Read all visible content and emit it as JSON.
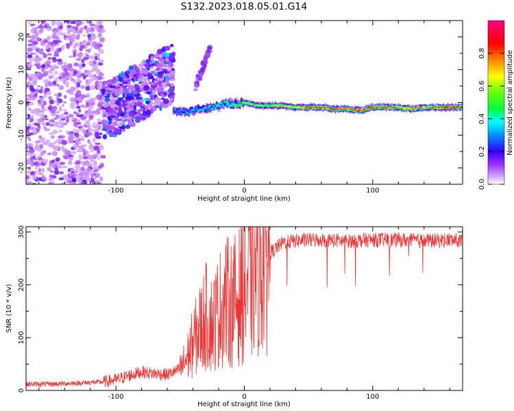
{
  "title": "S132.2023.018.05.01.G14",
  "chart_data": [
    {
      "type": "heatmap",
      "title": "S132.2023.018.05.01.G14",
      "xlabel": "Height of straight line (km)",
      "ylabel": "Frequency (Hz)",
      "xlim": [
        -170,
        170
      ],
      "ylim": [
        -25,
        25
      ],
      "x_ticks": [
        -100,
        0,
        100
      ],
      "x_tick_labels": [
        "-100",
        "0",
        "100"
      ],
      "y_ticks": [
        -20,
        -10,
        0,
        10,
        20
      ],
      "y_tick_labels": [
        "-20",
        "-10",
        "0",
        "10",
        "20"
      ],
      "colorbar": {
        "label": "Normalized spectral amplitude",
        "range": [
          0,
          1
        ],
        "ticks": [
          0.0,
          0.2,
          0.4,
          0.6,
          0.8
        ],
        "tick_labels": [
          "0.0",
          "0.2",
          "0.4",
          "0.6",
          "0.8"
        ],
        "colors": [
          "#ffffff",
          "#b43cff",
          "#7a00ff",
          "#0000ff",
          "#00ffff",
          "#00ff00",
          "#ffff00",
          "#ff8000",
          "#ff0000",
          "#ff0080"
        ]
      },
      "ridge": {
        "x": [
          -55,
          -45,
          -35,
          -25,
          -15,
          -5,
          0,
          5,
          10,
          20,
          30,
          40,
          50,
          60,
          70,
          80,
          90,
          100,
          110,
          120,
          130,
          140,
          150,
          160,
          170
        ],
        "freq": [
          -2.5,
          -3,
          -2,
          -1.5,
          -0.5,
          -0.5,
          0,
          -0.5,
          -1,
          -1,
          -1,
          -1.5,
          -1.5,
          -1.5,
          -2,
          -2,
          -2.5,
          -1.5,
          -1.5,
          -1.5,
          -2,
          -1.5,
          -1.5,
          -1.5,
          -1.5
        ],
        "amplitude": [
          0.3,
          0.35,
          0.35,
          0.4,
          0.45,
          0.5,
          0.55,
          0.55,
          0.6,
          0.6,
          0.65,
          0.65,
          0.9,
          0.8,
          0.9,
          0.75,
          0.9,
          0.85,
          0.9,
          0.75,
          0.8,
          0.75,
          0.85,
          0.9,
          0.9
        ]
      }
    },
    {
      "type": "line",
      "xlabel": "Height of straight line (km)",
      "ylabel": "SNR (10 * v/v)",
      "xlim": [
        -170,
        170
      ],
      "ylim": [
        0,
        310
      ],
      "x_ticks": [
        -100,
        0,
        100
      ],
      "x_tick_labels": [
        "-100",
        "0",
        "100"
      ],
      "y_ticks": [
        0,
        100,
        200,
        300
      ],
      "y_tick_labels": [
        "0",
        "100",
        "200",
        "300"
      ],
      "color": "#ee3333",
      "series": [
        {
          "name": "SNR",
          "x": [
            -170,
            -150,
            -130,
            -110,
            -100,
            -90,
            -80,
            -70,
            -60,
            -50,
            -45,
            -40,
            -35,
            -30,
            -25,
            -20,
            -15,
            -10,
            -5,
            0,
            5,
            10,
            15,
            20,
            25,
            30,
            40,
            50,
            60,
            80,
            100,
            120,
            140,
            160,
            170
          ],
          "values": [
            12,
            12,
            14,
            16,
            20,
            28,
            35,
            32,
            30,
            40,
            60,
            90,
            115,
            140,
            125,
            150,
            170,
            165,
            175,
            195,
            215,
            235,
            245,
            260,
            270,
            280,
            283,
            285,
            285,
            283,
            285,
            285,
            283,
            285,
            283
          ]
        }
      ]
    }
  ]
}
